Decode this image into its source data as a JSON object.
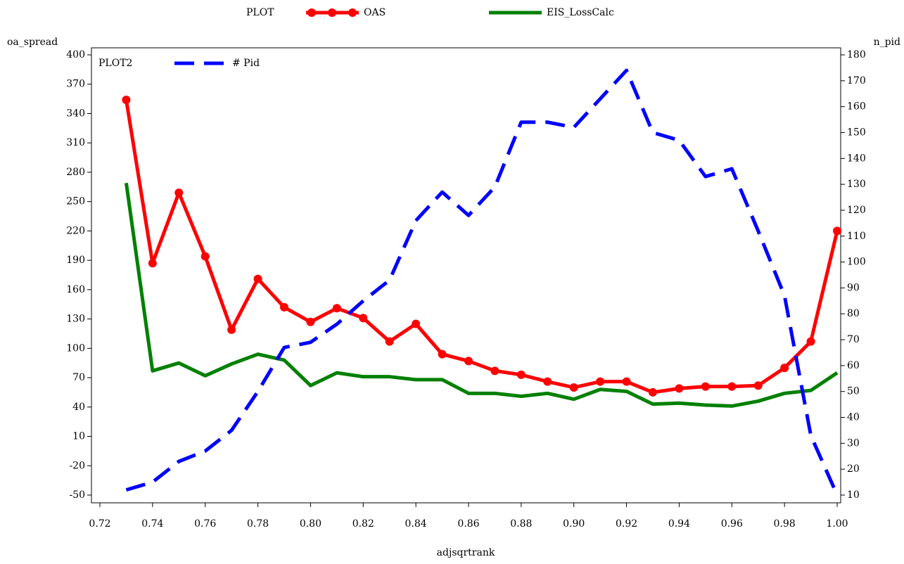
{
  "chart_data": {
    "type": "line",
    "legend_title": "PLOT",
    "legend2_title": "PLOT2",
    "xlabel": "adjsqrtrank",
    "ylabel": "oa_spread",
    "y2label": "n_pid",
    "x": [
      0.73,
      0.74,
      0.75,
      0.76,
      0.77,
      0.78,
      0.79,
      0.8,
      0.81,
      0.82,
      0.83,
      0.84,
      0.85,
      0.86,
      0.87,
      0.88,
      0.89,
      0.9,
      0.91,
      0.92,
      0.93,
      0.94,
      0.95,
      0.96,
      0.97,
      0.98,
      0.99,
      1.0
    ],
    "series": [
      {
        "name": "OAS",
        "color": "#ff0000",
        "markers": true,
        "legend": 1,
        "values": [
          354,
          187,
          259,
          194,
          119,
          171,
          142,
          127,
          141,
          131,
          107,
          125,
          94,
          87,
          77,
          73,
          66,
          60,
          66,
          66,
          55,
          59,
          61,
          61,
          62,
          80,
          107,
          220
        ]
      },
      {
        "name": "EIS_LossCalc",
        "color": "#008000",
        "markers": false,
        "legend": 1,
        "values": [
          269,
          77,
          85,
          72,
          84,
          94,
          88,
          62,
          75,
          71,
          71,
          68,
          68,
          54,
          54,
          51,
          54,
          48,
          58,
          56,
          43,
          44,
          42,
          41,
          46,
          54,
          57,
          75
        ]
      },
      {
        "name": "# Pid",
        "color": "#0000ff",
        "markers": false,
        "dashed": true,
        "axis": "y2",
        "legend": 2,
        "values": [
          12,
          15,
          23,
          27,
          35,
          50,
          67,
          69,
          76,
          85,
          93,
          116,
          127,
          118,
          129,
          154,
          154,
          152,
          163,
          174,
          150,
          147,
          133,
          136,
          112,
          87,
          33,
          10
        ]
      }
    ],
    "xlim": [
      0.72,
      1.0
    ],
    "xticks": [
      0.72,
      0.74,
      0.76,
      0.78,
      {
        "value": 0.8,
        "label": "0.80"
      },
      0.82,
      0.84,
      0.86,
      0.88,
      {
        "value": 0.9,
        "label": "0.90"
      },
      0.92,
      0.94,
      0.96,
      0.98,
      {
        "value": 1.0,
        "label": "1.00"
      }
    ],
    "ylim": [
      -50,
      400
    ],
    "yticks": [
      -50,
      -20,
      10,
      40,
      70,
      100,
      130,
      160,
      190,
      220,
      250,
      280,
      310,
      340,
      370,
      400
    ],
    "y2lim": [
      10,
      180
    ],
    "y2ticks": [
      10,
      20,
      30,
      40,
      50,
      60,
      70,
      80,
      90,
      100,
      110,
      120,
      130,
      140,
      150,
      160,
      170,
      180
    ]
  }
}
